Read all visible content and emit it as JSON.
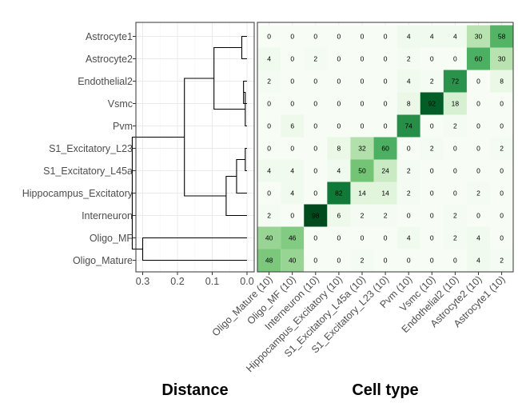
{
  "chart_data": [
    {
      "type": "dendrogram",
      "xlabel": "Distance",
      "xticks": [
        0.3,
        0.2,
        0.1,
        0.0
      ],
      "xticklabels": [
        "0.3",
        "0.2",
        "0.1",
        "0.0"
      ],
      "xlim": [
        0.3,
        0.0
      ],
      "leaves": [
        "Astrocyte1",
        "Astrocyte2",
        "Endothelial2",
        "Vsmc",
        "Pvm",
        "S1_Excitatory_L23",
        "S1_Excitatory_L45a",
        "Hippocampus_Excitatory",
        "Interneuron",
        "Oligo_MF",
        "Oligo_Mature"
      ],
      "merges": [
        {
          "a": "L0",
          "b": "L1",
          "h": 0.015
        },
        {
          "a": "L2",
          "b": "L3",
          "h": 0.01
        },
        {
          "a": "M1",
          "b": "L4",
          "h": 0.005
        },
        {
          "a": "M0",
          "b": "M2",
          "h": 0.095
        },
        {
          "a": "L5",
          "b": "L6",
          "h": 0.005
        },
        {
          "a": "M4",
          "b": "L7",
          "h": 0.03
        },
        {
          "a": "M5",
          "b": "L8",
          "h": 0.06
        },
        {
          "a": "M3",
          "b": "M6",
          "h": 0.18
        },
        {
          "a": "L9",
          "b": "L10",
          "h": 0.3
        },
        {
          "a": "M7",
          "b": "M8",
          "h": 0.33
        }
      ]
    },
    {
      "type": "heatmap",
      "xlabel": "Cell type",
      "rows": [
        "Astrocyte1",
        "Astrocyte2",
        "Endothelial2",
        "Vsmc",
        "Pvm",
        "S1_Excitatory_L23",
        "S1_Excitatory_L45a",
        "Hippocampus_Excitatory",
        "Interneuron",
        "Oligo_MF",
        "Oligo_Mature"
      ],
      "columns": [
        "Oligo_Mature (10)",
        "Oligo_MF (10)",
        "Interneuron (10)",
        "Hippocampus_Excitatory (10)",
        "S1_Excitatory_L45a (10)",
        "S1_Excitatory_L23 (10)",
        "Pvm (10)",
        "Vsmc (10)",
        "Endothelial2 (10)",
        "Astrocyte2 (10)",
        "Astrocyte1 (10)"
      ],
      "values": [
        [
          0,
          0,
          0,
          0,
          0,
          0,
          4,
          4,
          4,
          30,
          58
        ],
        [
          4,
          0,
          2,
          0,
          0,
          0,
          2,
          0,
          0,
          60,
          30
        ],
        [
          2,
          0,
          0,
          0,
          0,
          0,
          4,
          2,
          72,
          0,
          8
        ],
        [
          0,
          0,
          0,
          0,
          0,
          0,
          8,
          92,
          18,
          0,
          0
        ],
        [
          0,
          6,
          0,
          0,
          0,
          0,
          74,
          0,
          2,
          0,
          0
        ],
        [
          0,
          0,
          0,
          8,
          32,
          60,
          0,
          2,
          0,
          0,
          2
        ],
        [
          4,
          4,
          0,
          4,
          50,
          24,
          2,
          0,
          0,
          0,
          0
        ],
        [
          0,
          4,
          0,
          82,
          14,
          14,
          2,
          0,
          0,
          2,
          0
        ],
        [
          2,
          0,
          98,
          6,
          2,
          2,
          0,
          0,
          2,
          0,
          0
        ],
        [
          40,
          46,
          0,
          0,
          0,
          0,
          4,
          0,
          2,
          4,
          0
        ],
        [
          48,
          40,
          0,
          0,
          2,
          0,
          0,
          0,
          0,
          4,
          2
        ]
      ],
      "colormap": [
        "#f7fcf5",
        "#00441b"
      ],
      "value_range": [
        0,
        100
      ],
      "grid": true
    }
  ]
}
